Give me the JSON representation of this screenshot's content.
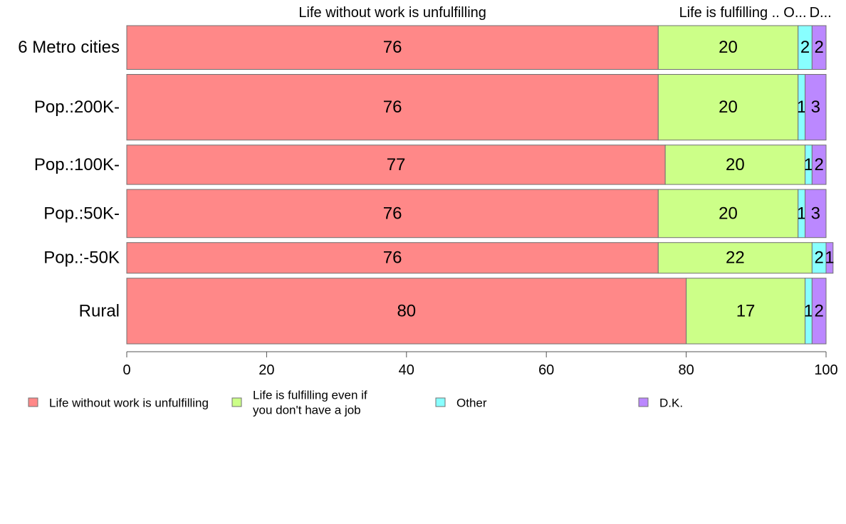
{
  "chart_data": {
    "type": "bar",
    "orientation": "horizontal",
    "stacked": true,
    "categories": [
      "6 Metro cities",
      "Pop.:200K-",
      "Pop.:100K-",
      "Pop.:50K-",
      "Pop.:-50K",
      "Rural"
    ],
    "series": [
      {
        "name": "Life without work is unfulfilling",
        "color": "#ff8888",
        "values": [
          76,
          76,
          77,
          76,
          76,
          80
        ],
        "labels": [
          "76",
          "76",
          "77",
          "76",
          "76",
          "80"
        ]
      },
      {
        "name": "Life is fulfilling even if you don't have a job",
        "color": "#ccff88",
        "values": [
          20,
          20,
          20,
          20,
          22,
          17
        ],
        "labels": [
          "20",
          "20",
          "20",
          "20",
          "22",
          "17"
        ]
      },
      {
        "name": "Other",
        "color": "#88ffff",
        "values": [
          2,
          1,
          1,
          1,
          2,
          1
        ],
        "labels": [
          "2",
          "1",
          "1",
          "1",
          "2",
          "1"
        ]
      },
      {
        "name": "D.K.",
        "color": "#bb88ff",
        "values": [
          2,
          3,
          2,
          3,
          1,
          2
        ],
        "labels": [
          "2",
          "3",
          "2",
          "3",
          "1",
          "2"
        ]
      }
    ],
    "top_labels": [
      "Life without work is unfulfilling",
      "Life is fulfilling .. O...",
      "D..."
    ],
    "legend": {
      "placement": "bottom",
      "entries": [
        {
          "lines": [
            "Life without work is unfulfilling"
          ]
        },
        {
          "lines": [
            "Life is fulfilling even if",
            "you don't have a job"
          ]
        },
        {
          "lines": [
            "Other"
          ]
        },
        {
          "lines": [
            "D.K."
          ]
        }
      ]
    },
    "xlim": [
      0,
      100
    ],
    "xticks": [
      0,
      20,
      40,
      60,
      80,
      100
    ],
    "xtick_labels": [
      "0",
      "20",
      "40",
      "60",
      "80",
      "100"
    ],
    "bar_widths": [
      1.0,
      1.5,
      0.9,
      1.1,
      0.7,
      1.5
    ],
    "grid": false
  }
}
